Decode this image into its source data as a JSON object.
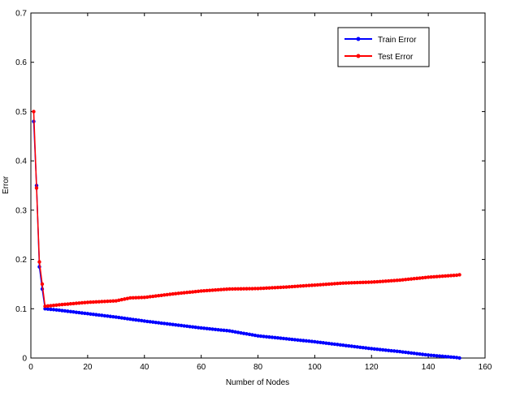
{
  "chart_data": {
    "type": "line",
    "title": "",
    "xlabel": "Number of Nodes",
    "ylabel": "Error",
    "xlim": [
      0,
      160
    ],
    "ylim": [
      0,
      0.7
    ],
    "xticks": [
      0,
      20,
      40,
      60,
      80,
      100,
      120,
      140,
      160
    ],
    "yticks": [
      0,
      0.1,
      0.2,
      0.3,
      0.4,
      0.5,
      0.6,
      0.7
    ],
    "xtick_labels": [
      "0",
      "20",
      "40",
      "60",
      "80",
      "100",
      "120",
      "140",
      "160"
    ],
    "ytick_labels": [
      "0",
      "0.1",
      "0.2",
      "0.3",
      "0.4",
      "0.5",
      "0.6",
      "0.7"
    ],
    "grid": false,
    "legend_position": "top-right",
    "series": [
      {
        "name": "Train Error",
        "color": "#0000ff",
        "marker": "circle",
        "x": [
          1,
          2,
          3,
          4,
          5,
          10,
          20,
          30,
          40,
          50,
          60,
          70,
          80,
          90,
          100,
          110,
          120,
          130,
          140,
          150,
          151
        ],
        "y": [
          0.48,
          0.35,
          0.185,
          0.14,
          0.1,
          0.097,
          0.09,
          0.083,
          0.075,
          0.068,
          0.061,
          0.055,
          0.045,
          0.039,
          0.033,
          0.026,
          0.019,
          0.013,
          0.006,
          0.001,
          0.0
        ]
      },
      {
        "name": "Test Error",
        "color": "#ff0000",
        "marker": "star",
        "x": [
          1,
          2,
          3,
          4,
          5,
          10,
          20,
          30,
          35,
          40,
          50,
          60,
          70,
          80,
          90,
          100,
          110,
          120,
          130,
          140,
          150,
          151
        ],
        "y": [
          0.5,
          0.345,
          0.195,
          0.15,
          0.105,
          0.108,
          0.113,
          0.116,
          0.122,
          0.123,
          0.13,
          0.136,
          0.14,
          0.141,
          0.144,
          0.148,
          0.152,
          0.154,
          0.158,
          0.164,
          0.168,
          0.169
        ]
      }
    ]
  }
}
